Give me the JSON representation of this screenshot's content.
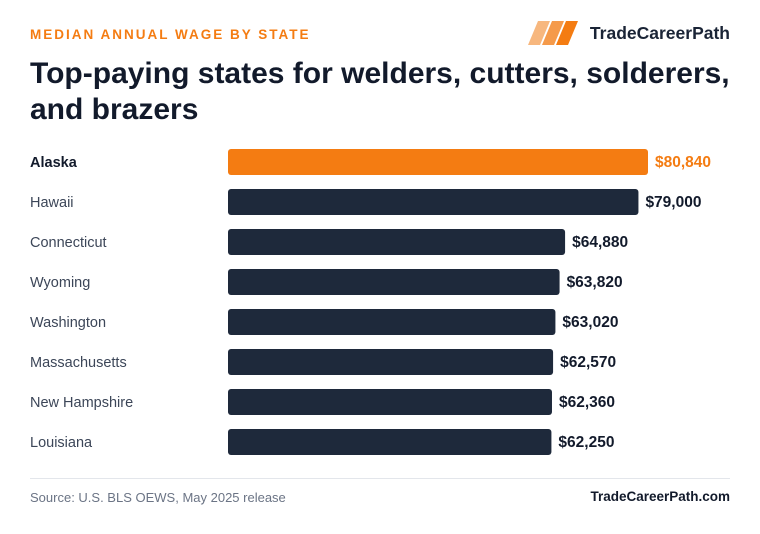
{
  "eyebrow": "MEDIAN ANNUAL WAGE BY STATE",
  "brand": {
    "name": "TradeCareerPath",
    "icon": "stripes-logo-icon"
  },
  "title": "Top-paying states for welders, cutters, solderers, and brazers",
  "colors": {
    "accent": "#f47c12",
    "bar": "#1e293b",
    "text": "#121a2b"
  },
  "chart_data": {
    "type": "bar",
    "orientation": "horizontal",
    "title": "Top-paying states for welders, cutters, solderers, and brazers",
    "categories": [
      "Alaska",
      "Hawaii",
      "Connecticut",
      "Wyoming",
      "Washington",
      "Massachusetts",
      "New Hampshire",
      "Louisiana"
    ],
    "values": [
      80840,
      79000,
      64880,
      63820,
      63020,
      62570,
      62360,
      62250
    ],
    "value_labels": [
      "$80,840",
      "$79,000",
      "$64,880",
      "$63,820",
      "$63,020",
      "$62,570",
      "$62,360",
      "$62,250"
    ],
    "highlight_index": 0,
    "xlim": [
      0,
      80840
    ],
    "grid": false,
    "legend": "none"
  },
  "footer": {
    "source": "Source: U.S. BLS OEWS, May 2025 release",
    "brand": "TradeCareerPath.com"
  }
}
